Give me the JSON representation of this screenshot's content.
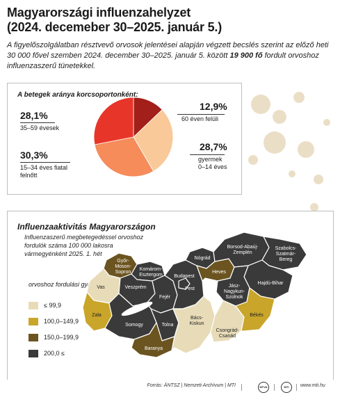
{
  "title_line1": "Magyarországi influenzahelyzet",
  "title_line2": "(2024. decemeber 30–2025. január 5.)",
  "intro": {
    "before": "A figyelőszolgálatban résztvevő orvosok jelentései alapján végzett becslés szerint az előző heti 30 000 fővel szemben 2024. december 30–2025. január 5. között ",
    "highlight": "19 900 fő",
    "after": " fordult orvoshoz influenzaszerű tünetekkel."
  },
  "chart_data": [
    {
      "type": "pie",
      "title": "A betegek aránya korcsoportonként:",
      "slices": [
        {
          "label": "60 éven felüli",
          "value": 12.9,
          "value_text": "12,9%",
          "color": "#a31f1a"
        },
        {
          "label": "gyermek 0–14 éves",
          "value": 28.7,
          "value_text": "28,7%",
          "color": "#f9c99a"
        },
        {
          "label": "15–34 éves fiatal felnőtt",
          "value": 30.3,
          "value_text": "30,3%",
          "color": "#f58c5a"
        },
        {
          "label": "35–59 évesek",
          "value": 28.1,
          "value_text": "28,1%",
          "color": "#e8352a"
        }
      ]
    },
    {
      "type": "choropleth",
      "title": "Influenzaaktivitás Magyarországon",
      "subtitle": "Influenzaszerű megbetegedéssel orvoshoz fordulók száma 100 000 lakosra vármegyénként 2025. 1. hét",
      "legend_title": "orvoshoz fordulási gyakoriság:",
      "classes": [
        {
          "label": "≤ 99,9",
          "color": "#e8dcb8"
        },
        {
          "label": "100,0–149,9",
          "color": "#c9a52a"
        },
        {
          "label": "150,0–199,9",
          "color": "#6b5420"
        },
        {
          "label": "200,0 ≤",
          "color": "#3a3a3a"
        }
      ],
      "regions": [
        {
          "name": "Győr-Moson-Sopron",
          "class": 2
        },
        {
          "name": "Komárom-Esztergom",
          "class": 3
        },
        {
          "name": "Vas",
          "class": 0
        },
        {
          "name": "Veszprém",
          "class": 3
        },
        {
          "name": "Fejér",
          "class": 3
        },
        {
          "name": "Budapest",
          "class": 3
        },
        {
          "name": "Pest",
          "class": 3
        },
        {
          "name": "Nógrád",
          "class": 3
        },
        {
          "name": "Heves",
          "class": 2
        },
        {
          "name": "Borsod-Abaúj-Zemplén",
          "class": 3
        },
        {
          "name": "Szabolcs-Szatmár-Bereg",
          "class": 3
        },
        {
          "name": "Hajdú-Bihar",
          "class": 3
        },
        {
          "name": "Jász-Nagykun-Szolnok",
          "class": 3
        },
        {
          "name": "Zala",
          "class": 1
        },
        {
          "name": "Somogy",
          "class": 3
        },
        {
          "name": "Tolna",
          "class": 3
        },
        {
          "name": "Baranya",
          "class": 2
        },
        {
          "name": "Bács-Kiskun",
          "class": 0
        },
        {
          "name": "Csongrád-Csanád",
          "class": 0
        },
        {
          "name": "Békés",
          "class": 1
        }
      ]
    }
  ],
  "region_labels": {
    "gyor1": "Győr-",
    "gyor2": "Moson-",
    "gyor3": "Sopron",
    "kom1": "Komárom-",
    "kom2": "Esztergom",
    "vas": "Vas",
    "veszprem": "Veszprém",
    "fejer": "Fejér",
    "budapest": "Budapest",
    "pest": "Pest",
    "nograd": "Nógrád",
    "heves": "Heves",
    "borsod1": "Borsod-Abaúj-",
    "borsod2": "Zemplén",
    "szab1": "Szabolcs-",
    "szab2": "Szatmár-",
    "szab3": "Bereg",
    "hajdu": "Hajdú-Bihar",
    "jasz1": "Jász-",
    "jasz2": "Nagykun-",
    "jasz3": "Szolnok",
    "zala": "Zala",
    "somogy": "Somogy",
    "tolna": "Tolna",
    "baranya": "Baranya",
    "bacs1": "Bács-",
    "bacs2": "Kiskun",
    "csong1": "Csongrád-",
    "csong2": "Csanád",
    "bekes": "Békés"
  },
  "pie_labels": {
    "s60_pct": "12,9%",
    "s60_lab": "60 éven felüli",
    "kid_pct": "28,7%",
    "kid_lab1": "gyermek",
    "kid_lab2": "0–14 éves",
    "young_pct": "30,3%",
    "young_lab1": "15–34 éves fiatal",
    "young_lab2": "felnőtt",
    "mid_pct": "28,1%",
    "mid_lab": "35–59 évesek"
  },
  "footer": {
    "source": "Forrás: ÁNTSZ | Nemzeti Archívum | MTI",
    "logo1": "MTVA",
    "logo2": "MTI",
    "site": "www.mti.hu"
  },
  "colors": {
    "splat": "#eadfc6",
    "map_background": "#ffffff",
    "border": "#ffffff"
  }
}
